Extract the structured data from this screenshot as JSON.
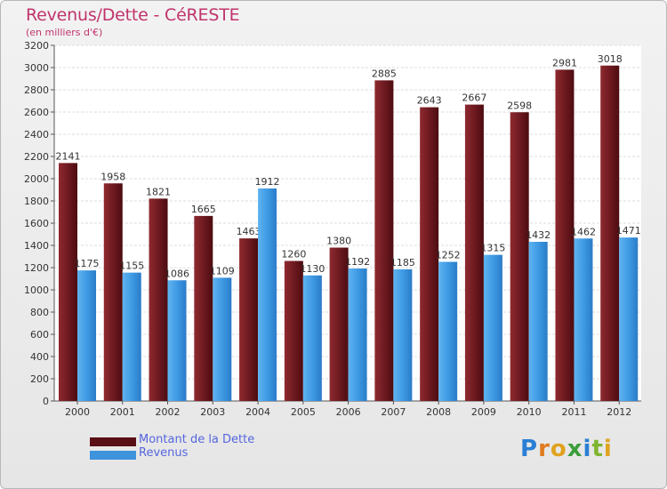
{
  "chart_data": {
    "type": "bar",
    "title": "Revenus/Dette - CéRESTE",
    "subtitle": "(en milliers d'€)",
    "categories": [
      "2000",
      "2001",
      "2002",
      "2003",
      "2004",
      "2005",
      "2006",
      "2007",
      "2008",
      "2009",
      "2010",
      "2011",
      "2012"
    ],
    "series": [
      {
        "name": "Montant de la Dette",
        "color": "#7a1a22",
        "values": [
          2141,
          1958,
          1821,
          1665,
          1463,
          1260,
          1380,
          2885,
          2643,
          2667,
          2598,
          2981,
          3018
        ]
      },
      {
        "name": "Revenus",
        "color": "#4aa3e8",
        "values": [
          1175,
          1155,
          1086,
          1109,
          1912,
          1130,
          1192,
          1185,
          1252,
          1315,
          1432,
          1462,
          1471
        ]
      }
    ],
    "ylim": [
      0,
      3200
    ],
    "ytick_step": 200,
    "grid": true,
    "legend": "bottom-left"
  },
  "logo": {
    "letters": [
      "P",
      "r",
      "o",
      "x",
      "i",
      "t",
      "i"
    ],
    "colors": [
      "#2a7fd4",
      "#e07b1f",
      "#e0a21f",
      "#3a9e3a",
      "#2a7fd4",
      "#7fb52e",
      "#e0a21f"
    ]
  }
}
